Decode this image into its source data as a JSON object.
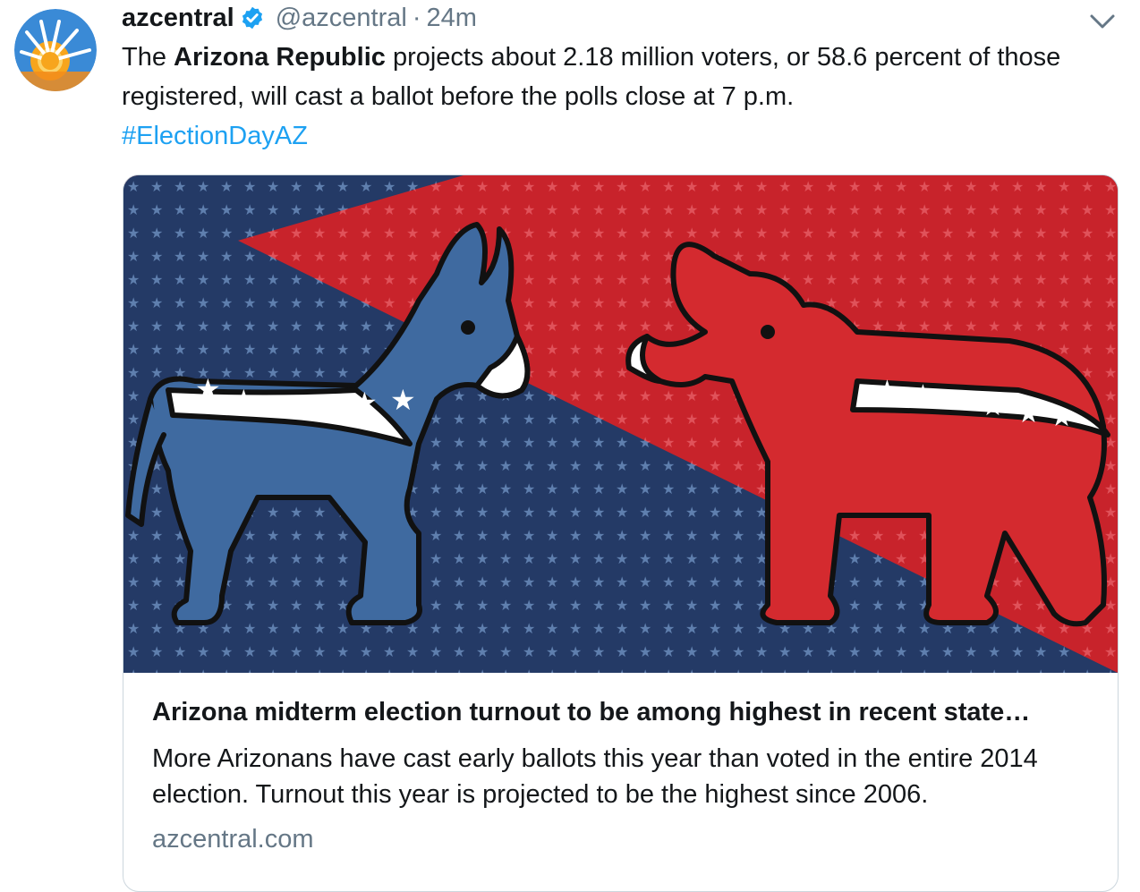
{
  "tweet": {
    "author_name": "azcentral",
    "author_handle": "@azcentral",
    "separator": "·",
    "timestamp": "24m",
    "text_prefix": "The ",
    "text_bold": "Arizona Republic",
    "text_rest": " projects about 2.18 million voters, or 58.6 percent of those registered, will cast a ballot before the polls close at 7 p.m.",
    "hashtag": "#ElectionDayAZ"
  },
  "card": {
    "title": "Arizona midterm election turnout to be among highest in recent state…",
    "description": "More Arizonans have cast early ballots this year than voted in the entire 2014 election. Turnout this year is projected to be the highest since 2006.",
    "domain": "azcentral.com"
  },
  "icons": {
    "avatar": "azcentral-sun-logo",
    "verified": "verified-badge-icon",
    "menu": "chevron-down-icon"
  },
  "colors": {
    "link": "#1da1f2",
    "muted": "#657786",
    "text": "#14171a",
    "democrat_blue": "#3f6aa0",
    "republican_red": "#d42a2f"
  }
}
